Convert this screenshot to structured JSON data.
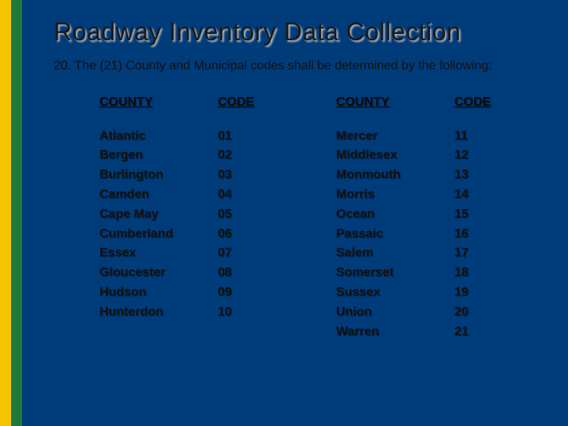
{
  "colors": {
    "background": "#003b7a",
    "stripe_yellow": "#f6c400",
    "stripe_green": "#1f7a3a",
    "title_shadow": "#c0c0c0",
    "text": "#111111"
  },
  "typography": {
    "title_fontsize": 32,
    "body_fontsize": 16,
    "cell_fontsize": 16,
    "font_family": "Verdana"
  },
  "title": "Roadway Inventory Data Collection",
  "lead": "20. The (21) County and Municipal codes shall be determined by the following:",
  "headers": {
    "county": "COUNTY",
    "code": "CODE"
  },
  "left": {
    "counties": [
      "Atlantic",
      "Bergen",
      "Burlington",
      "Camden",
      "Cape May",
      "Cumberland",
      "Essex",
      "Gloucester",
      "Hudson",
      "Hunterdon"
    ],
    "codes": [
      "01",
      "02",
      "03",
      "04",
      "05",
      "06",
      "07",
      "08",
      "09",
      "10"
    ]
  },
  "right": {
    "counties": [
      "Mercer",
      "Middlesex",
      "Monmouth",
      "Morris",
      "Ocean",
      "Passaic",
      "Salem",
      "Somerset",
      "Sussex",
      "Union",
      "Warren"
    ],
    "codes": [
      "11",
      "12",
      "13",
      "14",
      "15",
      "16",
      "17",
      "18",
      "19",
      "20",
      "21"
    ]
  }
}
